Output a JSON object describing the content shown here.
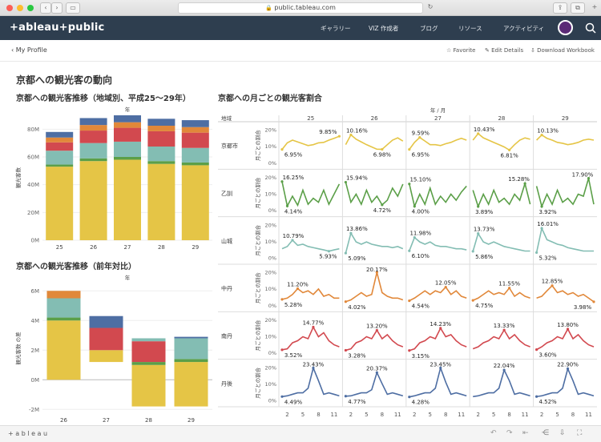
{
  "browser": {
    "url": "public.tableau.com"
  },
  "nav": {
    "logo": "+ableau+public",
    "items": [
      "ギャラリー",
      "VIZ 作成者",
      "ブログ",
      "リソース",
      "アクティビティ"
    ]
  },
  "subbar": {
    "back": "My Profile",
    "favorite": "Favorite",
    "edit": "Edit Details",
    "download": "Download Workbook"
  },
  "page_title": "京都への観光客の動向",
  "chart1_title": "京都への観光客推移（地域別、平成25〜29年）",
  "chart2_title": "京都への観光客推移（前年対比）",
  "chart3_title": "京都への月ごとの観光客割合",
  "footer": {
    "logo": "+ a b l e a u"
  },
  "colors": {
    "yellow": "#e5c546",
    "green": "#5b9f48",
    "teal": "#83bdb3",
    "red": "#d2494f",
    "orange": "#e1883a",
    "blue": "#4e6ea3"
  },
  "chart_data": [
    {
      "type": "bar",
      "stacked": true,
      "title": "京都への観光客推移（地域別、平成25〜29年）",
      "xlabel": "年",
      "ylabel": "観光客数",
      "categories": [
        "25",
        "26",
        "27",
        "28",
        "29"
      ],
      "ylim": [
        0,
        90000000
      ],
      "yticks": [
        "0M",
        "20M",
        "40M",
        "60M",
        "80M"
      ],
      "series": [
        {
          "color": "yellow",
          "values": [
            53000000,
            57000000,
            58000000,
            55000000,
            54000000
          ]
        },
        {
          "color": "green",
          "values": [
            1500000,
            2000000,
            2000000,
            2000000,
            2000000
          ]
        },
        {
          "color": "teal",
          "values": [
            10000000,
            11000000,
            11000000,
            10500000,
            10500000
          ]
        },
        {
          "color": "red",
          "values": [
            6000000,
            9000000,
            10000000,
            11000000,
            11000000
          ]
        },
        {
          "color": "orange",
          "values": [
            3500000,
            4000000,
            4000000,
            4000000,
            4000000
          ]
        },
        {
          "color": "blue",
          "values": [
            4000000,
            5000000,
            5000000,
            5000000,
            5000000
          ]
        }
      ]
    },
    {
      "type": "bar",
      "waterfall": true,
      "title": "京都への観光客推移（前年対比）",
      "xlabel": "年",
      "ylabel": "観光客数 の差",
      "categories": [
        "26",
        "27",
        "28",
        "29"
      ],
      "ylim": [
        -2200000,
        6500000
      ],
      "yticks": [
        "-2M",
        "0M",
        "2M",
        "4M",
        "6M"
      ],
      "segments": [
        [
          {
            "color": "yellow",
            "from": 0,
            "to": 4000000
          },
          {
            "color": "green",
            "from": 4000000,
            "to": 4200000
          },
          {
            "color": "teal",
            "from": 4200000,
            "to": 5500000
          },
          {
            "color": "orange",
            "from": 5500000,
            "to": 6000000
          }
        ],
        [
          {
            "color": "yellow",
            "from": 1200000,
            "to": 2000000
          },
          {
            "color": "red",
            "from": 2000000,
            "to": 3500000
          },
          {
            "color": "blue",
            "from": 3500000,
            "to": 4300000
          }
        ],
        [
          {
            "color": "yellow",
            "from": -1800000,
            "to": 1000000
          },
          {
            "color": "green",
            "from": 1000000,
            "to": 1200000
          },
          {
            "color": "red",
            "from": 1200000,
            "to": 2600000
          },
          {
            "color": "teal",
            "from": 2600000,
            "to": 2800000
          }
        ],
        [
          {
            "color": "yellow",
            "from": -1800000,
            "to": 1200000
          },
          {
            "color": "green",
            "from": 1200000,
            "to": 1400000
          },
          {
            "color": "teal",
            "from": 1400000,
            "to": 2800000
          },
          {
            "color": "blue",
            "from": 2800000,
            "to": 2900000
          }
        ]
      ]
    },
    {
      "type": "line",
      "small_multiples": true,
      "title": "京都への月ごとの観光客割合",
      "column_header": "年 / 月",
      "row_header": "地域",
      "ylabel": "月ごとの割合",
      "columns": [
        "25",
        "26",
        "27",
        "28",
        "29"
      ],
      "xticks": [
        "2",
        "5",
        "8",
        "11"
      ],
      "yticks": [
        "0%",
        "10%",
        "20%"
      ],
      "ylim": [
        0,
        0.24
      ],
      "rows": [
        {
          "name": "京都市",
          "color": "yellow",
          "ylim": [
            0.04,
            0.12
          ],
          "cells": [
            {
              "max": "9.85%",
              "min": "6.95%",
              "values": [
                0.0695,
                0.084,
                0.09,
                0.086,
                0.082,
                0.078,
                0.08,
                0.084,
                0.085,
                0.09,
                0.094,
                0.0985
              ]
            },
            {
              "max": "10.16%",
              "min": "6.98%",
              "values": [
                0.08,
                0.1016,
                0.092,
                0.086,
                0.08,
                0.075,
                0.07,
                0.0698,
                0.08,
                0.09,
                0.095,
                0.088
              ]
            },
            {
              "max": "9.59%",
              "min": "6.95%",
              "values": [
                0.0695,
                0.085,
                0.0959,
                0.088,
                0.08,
                0.08,
                0.078,
                0.082,
                0.085,
                0.09,
                0.094,
                0.09
              ]
            },
            {
              "max": "10.43%",
              "min": "6.81%",
              "values": [
                0.09,
                0.1043,
                0.095,
                0.09,
                0.085,
                0.08,
                0.075,
                0.0681,
                0.08,
                0.09,
                0.095,
                0.092
              ]
            },
            {
              "max": "10.13%",
              "min": "",
              "values": [
                0.09,
                0.1013,
                0.094,
                0.09,
                0.085,
                0.083,
                0.08,
                0.082,
                0.085,
                0.09,
                0.092,
                0.09
              ]
            }
          ]
        },
        {
          "name": "乙訓",
          "color": "green",
          "ylim": [
            0.02,
            0.2
          ],
          "cells": [
            {
              "max": "16.25%",
              "min": "4.14%",
              "values": [
                0.1625,
                0.0414,
                0.09,
                0.045,
                0.12,
                0.05,
                0.08,
                0.06,
                0.12,
                0.05,
                0.1,
                0.15
              ]
            },
            {
              "max": "15.94%",
              "min": "4.72%",
              "values": [
                0.1594,
                0.06,
                0.1,
                0.05,
                0.12,
                0.06,
                0.09,
                0.0472,
                0.07,
                0.13,
                0.09,
                0.15
              ]
            },
            {
              "max": "15.10%",
              "min": "4.00%",
              "values": [
                0.151,
                0.04,
                0.1,
                0.05,
                0.13,
                0.05,
                0.09,
                0.06,
                0.1,
                0.07,
                0.11,
                0.14
              ]
            },
            {
              "max": "15.28%",
              "min": "3.89%",
              "values": [
                0.12,
                0.0389,
                0.1,
                0.05,
                0.12,
                0.06,
                0.08,
                0.05,
                0.1,
                0.07,
                0.1528,
                0.05
              ]
            },
            {
              "max": "17.90%",
              "min": "3.92%",
              "values": [
                0.14,
                0.0392,
                0.1,
                0.05,
                0.12,
                0.06,
                0.08,
                0.05,
                0.1,
                0.09,
                0.179,
                0.05
              ]
            }
          ]
        },
        {
          "name": "山城",
          "color": "teal",
          "ylim": [
            0.03,
            0.19
          ],
          "cells": [
            {
              "max": "10.79%",
              "min": "5.93%",
              "values": [
                0.07,
                0.08,
                0.1079,
                0.085,
                0.09,
                0.08,
                0.075,
                0.07,
                0.065,
                0.0593,
                0.065,
                0.07
              ]
            },
            {
              "max": "13.86%",
              "min": "5.09%",
              "values": [
                0.0509,
                0.1386,
                0.1,
                0.09,
                0.1,
                0.09,
                0.085,
                0.08,
                0.08,
                0.075,
                0.08,
                0.07
              ]
            },
            {
              "max": "11.98%",
              "min": "6.10%",
              "values": [
                0.061,
                0.1198,
                0.1,
                0.09,
                0.1,
                0.085,
                0.08,
                0.08,
                0.075,
                0.07,
                0.07,
                0.065
              ]
            },
            {
              "max": "13.73%",
              "min": "5.86%",
              "values": [
                0.0586,
                0.1373,
                0.1,
                0.09,
                0.1,
                0.09,
                0.08,
                0.075,
                0.07,
                0.065,
                0.06,
                0.06
              ]
            },
            {
              "max": "16.01%",
              "min": "5.32%",
              "values": [
                0.0532,
                0.1601,
                0.11,
                0.1,
                0.09,
                0.085,
                0.075,
                0.07,
                0.065,
                0.06,
                0.06,
                0.06
              ]
            }
          ]
        },
        {
          "name": "中丹",
          "color": "orange",
          "ylim": [
            0.02,
            0.22
          ],
          "cells": [
            {
              "max": "11.20%",
              "min": "5.28%",
              "values": [
                0.0528,
                0.06,
                0.08,
                0.112,
                0.09,
                0.1,
                0.08,
                0.11,
                0.07,
                0.08,
                0.06,
                0.06
              ]
            },
            {
              "max": "20.17%",
              "min": "4.02%",
              "values": [
                0.0402,
                0.05,
                0.07,
                0.09,
                0.07,
                0.08,
                0.2017,
                0.09,
                0.07,
                0.06,
                0.06,
                0.05
              ]
            },
            {
              "max": "12.05%",
              "min": "4.54%",
              "values": [
                0.0454,
                0.06,
                0.08,
                0.1,
                0.08,
                0.1,
                0.09,
                0.1205,
                0.08,
                0.1,
                0.07,
                0.06
              ]
            },
            {
              "max": "11.55%",
              "min": "4.75%",
              "values": [
                0.0475,
                0.06,
                0.08,
                0.1,
                0.08,
                0.09,
                0.08,
                0.1155,
                0.07,
                0.09,
                0.07,
                0.06
              ]
            },
            {
              "max": "12.85%",
              "min": "3.98%",
              "values": [
                0.06,
                0.07,
                0.1,
                0.1285,
                0.09,
                0.1,
                0.08,
                0.09,
                0.07,
                0.08,
                0.06,
                0.0398
              ]
            }
          ]
        },
        {
          "name": "南丹",
          "color": "red",
          "ylim": [
            0.02,
            0.2
          ],
          "cells": [
            {
              "max": "14.77%",
              "min": "3.52%",
              "values": [
                0.0352,
                0.04,
                0.07,
                0.08,
                0.1,
                0.09,
                0.1477,
                0.1,
                0.12,
                0.08,
                0.06,
                0.05
              ]
            },
            {
              "max": "13.20%",
              "min": "3.28%",
              "values": [
                0.0328,
                0.04,
                0.07,
                0.08,
                0.1,
                0.09,
                0.132,
                0.09,
                0.11,
                0.08,
                0.06,
                0.05
              ]
            },
            {
              "max": "14.23%",
              "min": "3.15%",
              "values": [
                0.0315,
                0.04,
                0.07,
                0.08,
                0.1,
                0.09,
                0.1423,
                0.1,
                0.11,
                0.08,
                0.06,
                0.05
              ]
            },
            {
              "max": "13.33%",
              "min": "",
              "values": [
                0.04,
                0.05,
                0.07,
                0.08,
                0.1,
                0.09,
                0.1333,
                0.09,
                0.11,
                0.08,
                0.06,
                0.05
              ]
            },
            {
              "max": "13.80%",
              "min": "3.60%",
              "values": [
                0.036,
                0.05,
                0.07,
                0.08,
                0.1,
                0.09,
                0.138,
                0.09,
                0.11,
                0.08,
                0.06,
                0.05
              ]
            }
          ]
        },
        {
          "name": "丹後",
          "color": "blue",
          "ylim": [
            0.02,
            0.26
          ],
          "cells": [
            {
              "max": "23.43%",
              "min": "4.49%",
              "values": [
                0.0449,
                0.05,
                0.06,
                0.07,
                0.07,
                0.1,
                0.2343,
                0.15,
                0.06,
                0.07,
                0.06,
                0.05
              ]
            },
            {
              "max": "20.37%",
              "min": "4.77%",
              "values": [
                0.0477,
                0.05,
                0.06,
                0.07,
                0.07,
                0.09,
                0.2037,
                0.13,
                0.06,
                0.07,
                0.06,
                0.05
              ]
            },
            {
              "max": "23.45%",
              "min": "4.28%",
              "values": [
                0.0428,
                0.05,
                0.06,
                0.07,
                0.07,
                0.1,
                0.2345,
                0.14,
                0.06,
                0.07,
                0.06,
                0.05
              ]
            },
            {
              "max": "22.04%",
              "min": "",
              "values": [
                0.045,
                0.05,
                0.06,
                0.07,
                0.07,
                0.1,
                0.2204,
                0.15,
                0.06,
                0.07,
                0.06,
                0.05
              ]
            },
            {
              "max": "22.90%",
              "min": "4.52%",
              "values": [
                0.0452,
                0.05,
                0.06,
                0.07,
                0.07,
                0.1,
                0.229,
                0.15,
                0.06,
                0.07,
                0.06,
                0.05
              ]
            }
          ]
        }
      ]
    }
  ]
}
